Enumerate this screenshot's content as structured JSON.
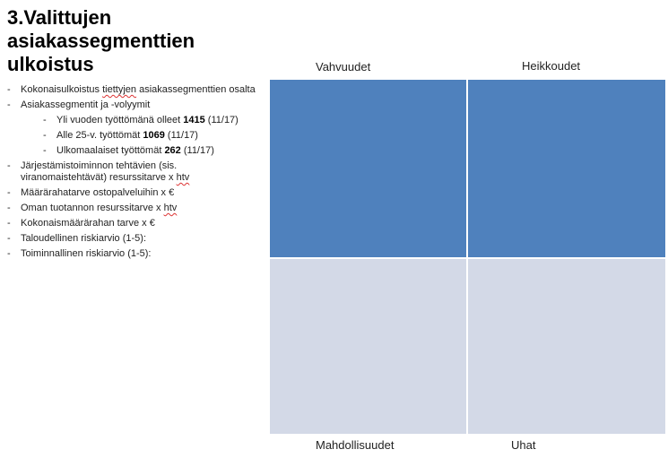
{
  "title": {
    "line1": "3.Valittujen",
    "line2": "asiakassegmenttien",
    "line3": "ulkoistus"
  },
  "bullets": {
    "b1_pre": "Kokonaisulkoistus ",
    "b1_sq": "tiettyjen",
    "b1_post": " asiakassegmenttien osalta",
    "b2": "Asiakassegmentit ja -volyymit",
    "s1_text": "Yli vuoden työttömänä olleet ",
    "s1_bold": "1415",
    "s1_tail": " (11/17)",
    "s2_text": "Alle 25-v. työttömät ",
    "s2_bold": "1069",
    "s2_tail": " (11/17)",
    "s3_text": "Ulkomaalaiset työttömät ",
    "s3_bold": "262",
    "s3_tail": " (11/17)",
    "b3_pre": "Järjestämistoiminnon tehtävien (sis. viranomaistehtävät) resurssitarve x ",
    "b3_sq": "htv",
    "b4": "Määrärahatarve ostopalveluihin x €",
    "b5_pre": "Oman tuotannon resurssitarve x ",
    "b5_sq": "htv",
    "b6": "Kokonaismäärärahan tarve x €",
    "b7": "Taloudellinen riskiarvio (1-5):",
    "b8": "Toiminnallinen riskiarvio (1-5):",
    "dash": "-"
  },
  "swot": {
    "strengths": "Vahvuudet",
    "weaknesses": "Heikkoudet",
    "opportunities": "Mahdollisuudet",
    "threats": "Uhat"
  },
  "colors": {
    "top_quadrants": "#4f81bd",
    "bottom_quadrants": "#d3d9e7"
  }
}
